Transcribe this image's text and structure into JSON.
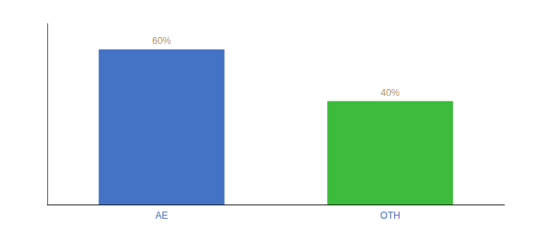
{
  "chart_data": {
    "type": "bar",
    "categories": [
      "AE",
      "OTH"
    ],
    "values": [
      60,
      40
    ],
    "value_labels": [
      "60%",
      "40%"
    ],
    "colors": [
      "#4472c4",
      "#3dbb3d"
    ],
    "ylim": [
      0,
      70
    ],
    "data_labels": true,
    "tick_labels": "x",
    "grid": false
  }
}
